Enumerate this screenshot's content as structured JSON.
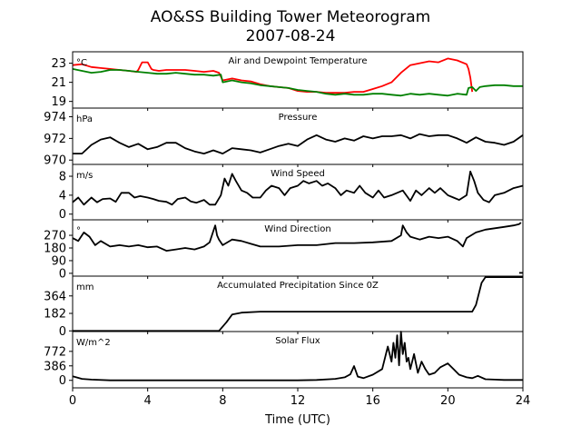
{
  "chart_data": {
    "type": "line",
    "title": "AO&SS Building Tower Meteorogram",
    "subtitle": "2007-08-24",
    "xlabel": "Time (UTC)",
    "xlim": [
      0,
      24
    ],
    "xticks": [
      0,
      4,
      8,
      12,
      16,
      20,
      24
    ],
    "tick_labels": [
      "0",
      "4",
      "8",
      "12",
      "16",
      "20",
      "24"
    ],
    "panels": [
      {
        "title": "Air and Dewpoint Temperature",
        "unit": "°C",
        "ylim": [
          18.3,
          24.2
        ],
        "yticks": [
          19,
          21,
          23
        ],
        "series": [
          {
            "color": "#ff0000",
            "x": [
              0,
              0.5,
              1,
              1.5,
              2,
              2.5,
              3,
              3.4,
              3.5,
              3.7,
              4,
              4.2,
              4.3,
              4.6,
              5,
              5.5,
              6,
              6.5,
              7,
              7.5,
              7.8,
              8,
              8.5,
              9,
              9.5,
              10,
              10.5,
              11,
              11.5,
              12,
              12.5,
              13,
              13.5,
              14,
              14.5,
              15,
              15.5,
              16,
              16.5,
              17,
              17.5,
              18,
              18.5,
              19,
              19.5,
              20,
              20.5,
              21,
              21.1,
              21.2,
              21.3
            ],
            "y": [
              22.8,
              22.9,
              22.6,
              22.5,
              22.4,
              22.3,
              22.2,
              22.1,
              22.3,
              23.1,
              23.1,
              22.4,
              22.3,
              22.2,
              22.3,
              22.3,
              22.3,
              22.2,
              22.1,
              22.2,
              22.0,
              21.2,
              21.4,
              21.2,
              21.1,
              20.8,
              20.6,
              20.5,
              20.4,
              20.1,
              20.0,
              20.0,
              19.9,
              19.9,
              19.9,
              20.0,
              20.0,
              20.3,
              20.6,
              21.0,
              22.0,
              22.8,
              23.0,
              23.2,
              23.1,
              23.5,
              23.3,
              22.9,
              22.4,
              21.5,
              20.0
            ]
          },
          {
            "color": "#008000",
            "x": [
              0,
              0.5,
              1,
              1.5,
              2,
              2.5,
              3,
              3.5,
              4,
              4.5,
              5,
              5.5,
              6,
              6.5,
              7,
              7.5,
              7.9,
              8,
              8.5,
              9,
              9.5,
              10,
              10.5,
              11,
              11.5,
              12,
              12.5,
              13,
              13.5,
              14,
              14.5,
              15,
              15.5,
              16,
              16.5,
              17,
              17.5,
              18,
              18.5,
              19,
              19.5,
              20,
              20.5,
              21,
              21.1,
              21.3,
              21.5,
              21.7,
              22,
              22.5,
              23,
              23.5,
              24
            ],
            "y": [
              22.4,
              22.2,
              22.0,
              22.1,
              22.3,
              22.3,
              22.2,
              22.1,
              22.0,
              21.9,
              21.9,
              22.0,
              21.9,
              21.8,
              21.8,
              21.7,
              21.8,
              21.0,
              21.2,
              21.0,
              20.9,
              20.7,
              20.6,
              20.5,
              20.4,
              20.2,
              20.1,
              20.0,
              19.8,
              19.7,
              19.8,
              19.7,
              19.7,
              19.8,
              19.8,
              19.7,
              19.6,
              19.8,
              19.7,
              19.8,
              19.7,
              19.6,
              19.8,
              19.7,
              20.4,
              20.5,
              20.1,
              20.5,
              20.6,
              20.7,
              20.7,
              20.6,
              20.6
            ]
          }
        ]
      },
      {
        "title": "Pressure",
        "unit": "hPa",
        "ylim": [
          969.6,
          974.8
        ],
        "yticks": [
          970,
          972,
          974
        ],
        "series": [
          {
            "color": "#000000",
            "x": [
              0,
              0.5,
              1,
              1.5,
              2,
              2.5,
              3,
              3.5,
              4,
              4.5,
              5,
              5.5,
              6,
              6.5,
              7,
              7.5,
              8,
              8.5,
              9,
              9.5,
              10,
              10.5,
              11,
              11.5,
              12,
              12.5,
              13,
              13.5,
              14,
              14.5,
              15,
              15.5,
              16,
              16.5,
              17,
              17.5,
              18,
              18.5,
              19,
              19.5,
              20,
              20.5,
              21,
              21.5,
              22,
              22.5,
              23,
              23.5,
              24
            ],
            "y": [
              970.6,
              970.6,
              971.4,
              971.9,
              972.1,
              971.6,
              971.2,
              971.5,
              971.0,
              971.2,
              971.6,
              971.6,
              971.1,
              970.8,
              970.6,
              970.9,
              970.6,
              971.1,
              971.0,
              970.9,
              970.7,
              971.0,
              971.3,
              971.5,
              971.3,
              971.9,
              972.3,
              971.9,
              971.7,
              972.0,
              971.8,
              972.2,
              972.0,
              972.2,
              972.2,
              972.3,
              972.0,
              972.4,
              972.2,
              972.3,
              972.3,
              972.0,
              971.6,
              972.1,
              971.7,
              971.6,
              971.4,
              971.7,
              972.3
            ]
          }
        ]
      },
      {
        "title": "Wind Speed",
        "unit": "m/s",
        "ylim": [
          -1.2,
          10.5
        ],
        "yticks": [
          0,
          4,
          8
        ],
        "series": [
          {
            "color": "#000000",
            "x": [
              0,
              0.3,
              0.6,
              1,
              1.3,
              1.6,
              2,
              2.3,
              2.6,
              3,
              3.3,
              3.6,
              4,
              4.3,
              4.6,
              5,
              5.3,
              5.6,
              6,
              6.3,
              6.6,
              7,
              7.3,
              7.6,
              7.9,
              8.1,
              8.3,
              8.5,
              8.7,
              9,
              9.3,
              9.6,
              10,
              10.3,
              10.6,
              11,
              11.3,
              11.6,
              12,
              12.3,
              12.6,
              13,
              13.3,
              13.6,
              14,
              14.3,
              14.6,
              15,
              15.3,
              15.6,
              16,
              16.3,
              16.6,
              17,
              17.3,
              17.6,
              18,
              18.3,
              18.6,
              19,
              19.3,
              19.6,
              20,
              20.3,
              20.6,
              21,
              21.2,
              21.4,
              21.6,
              21.9,
              22.2,
              22.5,
              23,
              23.5,
              24
            ],
            "y": [
              2.5,
              3.5,
              2.0,
              3.5,
              2.5,
              3.2,
              3.3,
              2.6,
              4.5,
              4.5,
              3.5,
              3.8,
              3.5,
              3.2,
              2.8,
              2.6,
              2.0,
              3.2,
              3.5,
              2.7,
              2.4,
              3.0,
              2.0,
              2.0,
              4.0,
              7.5,
              6.0,
              8.5,
              7.0,
              5.0,
              4.5,
              3.5,
              3.5,
              5.0,
              6.0,
              5.5,
              4.0,
              5.5,
              6.0,
              7.0,
              6.5,
              7.0,
              6.0,
              6.5,
              5.5,
              4.0,
              5.0,
              4.5,
              6.0,
              4.5,
              3.5,
              5.0,
              3.5,
              4.0,
              4.5,
              5.0,
              2.8,
              5.0,
              4.0,
              5.5,
              4.5,
              5.5,
              4.0,
              3.5,
              3.0,
              4.0,
              9.0,
              7.0,
              4.5,
              3.0,
              2.5,
              4.0,
              4.5,
              5.5,
              6.0
            ]
          }
        ]
      },
      {
        "title": "Wind Direction",
        "unit": "°",
        "ylim": [
          -20,
          380
        ],
        "yticks": [
          0,
          90,
          180,
          270
        ],
        "series": [
          {
            "color": "#000000",
            "x": [
              0,
              0.3,
              0.6,
              0.9,
              1.2,
              1.5,
              2,
              2.5,
              3,
              3.5,
              4,
              4.5,
              5,
              5.5,
              6,
              6.5,
              7,
              7.3,
              7.5,
              7.6,
              7.7,
              7.8,
              8,
              8.5,
              9,
              9.5,
              10,
              11,
              12,
              13,
              14,
              15,
              16,
              17,
              17.5,
              17.6,
              17.8,
              18,
              18.5,
              19,
              19.5,
              20,
              20.5,
              20.8,
              21,
              21.5,
              22,
              22.5,
              23,
              23.5,
              23.8,
              23.9
            ],
            "y": [
              250,
              230,
              290,
              260,
              200,
              230,
              190,
              200,
              190,
              200,
              185,
              190,
              160,
              170,
              180,
              170,
              190,
              220,
              300,
              340,
              270,
              240,
              200,
              240,
              230,
              210,
              190,
              190,
              200,
              200,
              215,
              215,
              220,
              230,
              270,
              340,
              290,
              260,
              240,
              260,
              250,
              260,
              230,
              190,
              250,
              290,
              310,
              320,
              330,
              340,
              350,
              360
            ]
          },
          {
            "color": "#000000",
            "x": [
              23.8,
              24
            ],
            "y": [
              3,
              3
            ]
          }
        ]
      },
      {
        "title": "Accumulated Precipitation Since 0Z",
        "unit": "mm",
        "ylim": [
          -7,
          570
        ],
        "yticks": [
          0,
          182,
          364
        ],
        "series": [
          {
            "color": "#000000",
            "x": [
              0,
              7.8,
              8.2,
              8.5,
              9,
              10,
              12,
              14,
              16,
              18,
              20,
              21.3,
              21.5,
              21.8,
              22,
              24
            ],
            "y": [
              0,
              0,
              90,
              170,
              190,
              200,
              200,
              200,
              200,
              200,
              200,
              200,
              270,
              500,
              560,
              560
            ]
          }
        ]
      },
      {
        "title": "Solar Flux",
        "unit": "W/m^2",
        "ylim": [
          -200,
          1300
        ],
        "yticks": [
          0,
          386,
          772
        ],
        "series": [
          {
            "color": "#000000",
            "x": [
              0,
              0.5,
              1,
              2,
              4,
              6,
              8,
              10,
              12,
              13,
              14,
              14.5,
              14.8,
              15,
              15.2,
              15.5,
              16,
              16.5,
              16.8,
              17,
              17.1,
              17.2,
              17.3,
              17.4,
              17.5,
              17.6,
              17.7,
              17.8,
              17.9,
              18,
              18.2,
              18.4,
              18.6,
              18.8,
              19,
              19.3,
              19.6,
              20,
              20.3,
              20.6,
              21,
              21.3,
              21.6,
              22,
              22.5,
              23,
              23.5,
              24
            ],
            "y": [
              110,
              40,
              20,
              0,
              0,
              0,
              0,
              0,
              0,
              10,
              40,
              80,
              160,
              380,
              100,
              60,
              150,
              300,
              900,
              500,
              1000,
              600,
              1200,
              400,
              1300,
              700,
              1000,
              500,
              600,
              300,
              700,
              200,
              500,
              300,
              150,
              200,
              350,
              450,
              300,
              150,
              80,
              60,
              120,
              30,
              20,
              10,
              10,
              10
            ]
          }
        ]
      }
    ]
  }
}
